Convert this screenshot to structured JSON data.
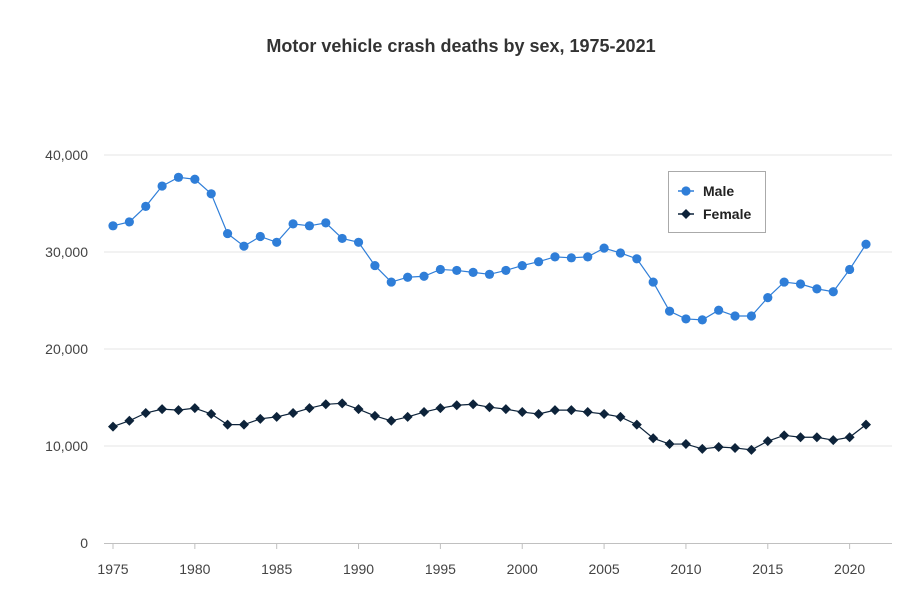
{
  "chart_data": {
    "type": "line",
    "title": "Motor vehicle crash deaths by sex, 1975-2021",
    "xlabel": "",
    "ylabel": "",
    "x": [
      1975,
      1976,
      1977,
      1978,
      1979,
      1980,
      1981,
      1982,
      1983,
      1984,
      1985,
      1986,
      1987,
      1988,
      1989,
      1990,
      1991,
      1992,
      1993,
      1994,
      1995,
      1996,
      1997,
      1998,
      1999,
      2000,
      2001,
      2002,
      2003,
      2004,
      2005,
      2006,
      2007,
      2008,
      2009,
      2010,
      2011,
      2012,
      2013,
      2014,
      2015,
      2016,
      2017,
      2018,
      2019,
      2020,
      2021
    ],
    "xlim": [
      1975,
      2021
    ],
    "ylim": [
      0,
      40000
    ],
    "x_ticks": [
      "1975",
      "1980",
      "1985",
      "1990",
      "1995",
      "2000",
      "2005",
      "2010",
      "2015",
      "2020"
    ],
    "y_ticks": [
      "0",
      "10,000",
      "20,000",
      "30,000",
      "40,000"
    ],
    "grid": "horizontal",
    "legend_position": "top-right",
    "series": [
      {
        "name": "Male",
        "color": "#2f7ed8",
        "marker": "circle",
        "values": [
          32700,
          33100,
          34700,
          36800,
          37700,
          37500,
          36000,
          31900,
          30600,
          31600,
          31000,
          32900,
          32700,
          33000,
          31400,
          31000,
          28600,
          26900,
          27400,
          27500,
          28200,
          28100,
          27900,
          27700,
          28100,
          28600,
          29000,
          29500,
          29400,
          29500,
          30400,
          29900,
          29300,
          26900,
          23900,
          23100,
          23000,
          24000,
          23400,
          23400,
          25300,
          26900,
          26700,
          26200,
          25900,
          28200,
          30800
        ]
      },
      {
        "name": "Female",
        "color": "#0d233a",
        "marker": "diamond",
        "values": [
          12000,
          12600,
          13400,
          13800,
          13700,
          13900,
          13300,
          12200,
          12200,
          12800,
          13000,
          13400,
          13900,
          14300,
          14400,
          13800,
          13100,
          12600,
          13000,
          13500,
          13900,
          14200,
          14300,
          14000,
          13800,
          13500,
          13300,
          13700,
          13700,
          13500,
          13300,
          13000,
          12200,
          10800,
          10200,
          10200,
          9700,
          9900,
          9800,
          9600,
          10500,
          11100,
          10900,
          10900,
          10600,
          10900,
          12200
        ]
      }
    ]
  }
}
